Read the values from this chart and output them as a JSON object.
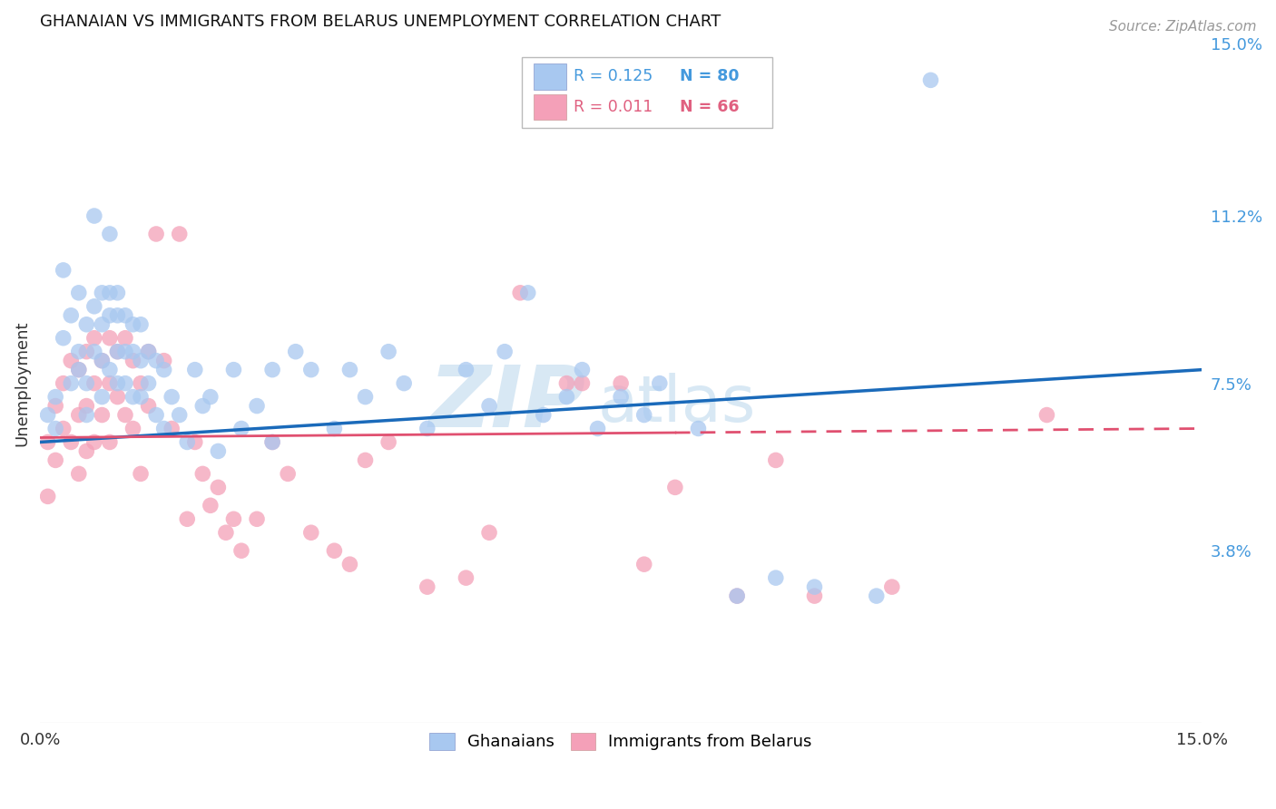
{
  "title": "GHANAIAN VS IMMIGRANTS FROM BELARUS UNEMPLOYMENT CORRELATION CHART",
  "source_text": "Source: ZipAtlas.com",
  "ylabel": "Unemployment",
  "x_min": 0.0,
  "x_max": 0.15,
  "y_min": 0.0,
  "y_max": 0.15,
  "y_tick_labels_right": [
    "15.0%",
    "11.2%",
    "7.5%",
    "3.8%",
    ""
  ],
  "y_tick_values_right": [
    0.15,
    0.112,
    0.075,
    0.038,
    0.0
  ],
  "legend_r1": "R = 0.125",
  "legend_n1": "N = 80",
  "legend_r2": "R = 0.011",
  "legend_n2": "N = 66",
  "color_ghanaian": "#A8C8F0",
  "color_belarus": "#F4A0B8",
  "color_line_ghanaian": "#1A6ABA",
  "color_line_belarus": "#E05070",
  "watermark_zip": "ZIP",
  "watermark_atlas": "atlas",
  "watermark_color": "#D8E8F4",
  "grid_color": "#DDDDDD",
  "background_color": "#FFFFFF",
  "ghanaian_line_start_y": 0.062,
  "ghanaian_line_end_y": 0.078,
  "belarus_line_start_y": 0.063,
  "belarus_line_end_y": 0.065,
  "ghanaian_x": [
    0.001,
    0.002,
    0.002,
    0.003,
    0.003,
    0.004,
    0.004,
    0.005,
    0.005,
    0.005,
    0.006,
    0.006,
    0.006,
    0.007,
    0.007,
    0.007,
    0.008,
    0.008,
    0.008,
    0.008,
    0.009,
    0.009,
    0.009,
    0.009,
    0.01,
    0.01,
    0.01,
    0.01,
    0.011,
    0.011,
    0.011,
    0.012,
    0.012,
    0.012,
    0.013,
    0.013,
    0.013,
    0.014,
    0.014,
    0.015,
    0.015,
    0.016,
    0.016,
    0.017,
    0.018,
    0.019,
    0.02,
    0.021,
    0.022,
    0.023,
    0.025,
    0.026,
    0.028,
    0.03,
    0.03,
    0.033,
    0.035,
    0.038,
    0.04,
    0.042,
    0.045,
    0.047,
    0.05,
    0.055,
    0.058,
    0.06,
    0.063,
    0.065,
    0.068,
    0.07,
    0.072,
    0.075,
    0.078,
    0.08,
    0.085,
    0.09,
    0.095,
    0.1,
    0.108,
    0.115
  ],
  "ghanaian_y": [
    0.068,
    0.072,
    0.065,
    0.1,
    0.085,
    0.09,
    0.075,
    0.095,
    0.082,
    0.078,
    0.088,
    0.075,
    0.068,
    0.112,
    0.092,
    0.082,
    0.095,
    0.088,
    0.08,
    0.072,
    0.108,
    0.095,
    0.09,
    0.078,
    0.095,
    0.09,
    0.082,
    0.075,
    0.09,
    0.082,
    0.075,
    0.088,
    0.082,
    0.072,
    0.088,
    0.08,
    0.072,
    0.082,
    0.075,
    0.08,
    0.068,
    0.078,
    0.065,
    0.072,
    0.068,
    0.062,
    0.078,
    0.07,
    0.072,
    0.06,
    0.078,
    0.065,
    0.07,
    0.078,
    0.062,
    0.082,
    0.078,
    0.065,
    0.078,
    0.072,
    0.082,
    0.075,
    0.065,
    0.078,
    0.07,
    0.082,
    0.095,
    0.068,
    0.072,
    0.078,
    0.065,
    0.072,
    0.068,
    0.075,
    0.065,
    0.028,
    0.032,
    0.03,
    0.028,
    0.142
  ],
  "belarus_x": [
    0.001,
    0.001,
    0.002,
    0.002,
    0.003,
    0.003,
    0.004,
    0.004,
    0.005,
    0.005,
    0.005,
    0.006,
    0.006,
    0.006,
    0.007,
    0.007,
    0.007,
    0.008,
    0.008,
    0.009,
    0.009,
    0.009,
    0.01,
    0.01,
    0.011,
    0.011,
    0.012,
    0.012,
    0.013,
    0.013,
    0.014,
    0.014,
    0.015,
    0.016,
    0.017,
    0.018,
    0.019,
    0.02,
    0.021,
    0.022,
    0.023,
    0.024,
    0.025,
    0.026,
    0.028,
    0.03,
    0.032,
    0.035,
    0.038,
    0.04,
    0.042,
    0.045,
    0.05,
    0.055,
    0.058,
    0.062,
    0.068,
    0.07,
    0.075,
    0.078,
    0.082,
    0.09,
    0.095,
    0.1,
    0.11,
    0.13
  ],
  "belarus_y": [
    0.062,
    0.05,
    0.07,
    0.058,
    0.075,
    0.065,
    0.08,
    0.062,
    0.078,
    0.068,
    0.055,
    0.082,
    0.07,
    0.06,
    0.085,
    0.075,
    0.062,
    0.08,
    0.068,
    0.085,
    0.075,
    0.062,
    0.082,
    0.072,
    0.085,
    0.068,
    0.08,
    0.065,
    0.075,
    0.055,
    0.07,
    0.082,
    0.108,
    0.08,
    0.065,
    0.108,
    0.045,
    0.062,
    0.055,
    0.048,
    0.052,
    0.042,
    0.045,
    0.038,
    0.045,
    0.062,
    0.055,
    0.042,
    0.038,
    0.035,
    0.058,
    0.062,
    0.03,
    0.032,
    0.042,
    0.095,
    0.075,
    0.075,
    0.075,
    0.035,
    0.052,
    0.028,
    0.058,
    0.028,
    0.03,
    0.068
  ]
}
